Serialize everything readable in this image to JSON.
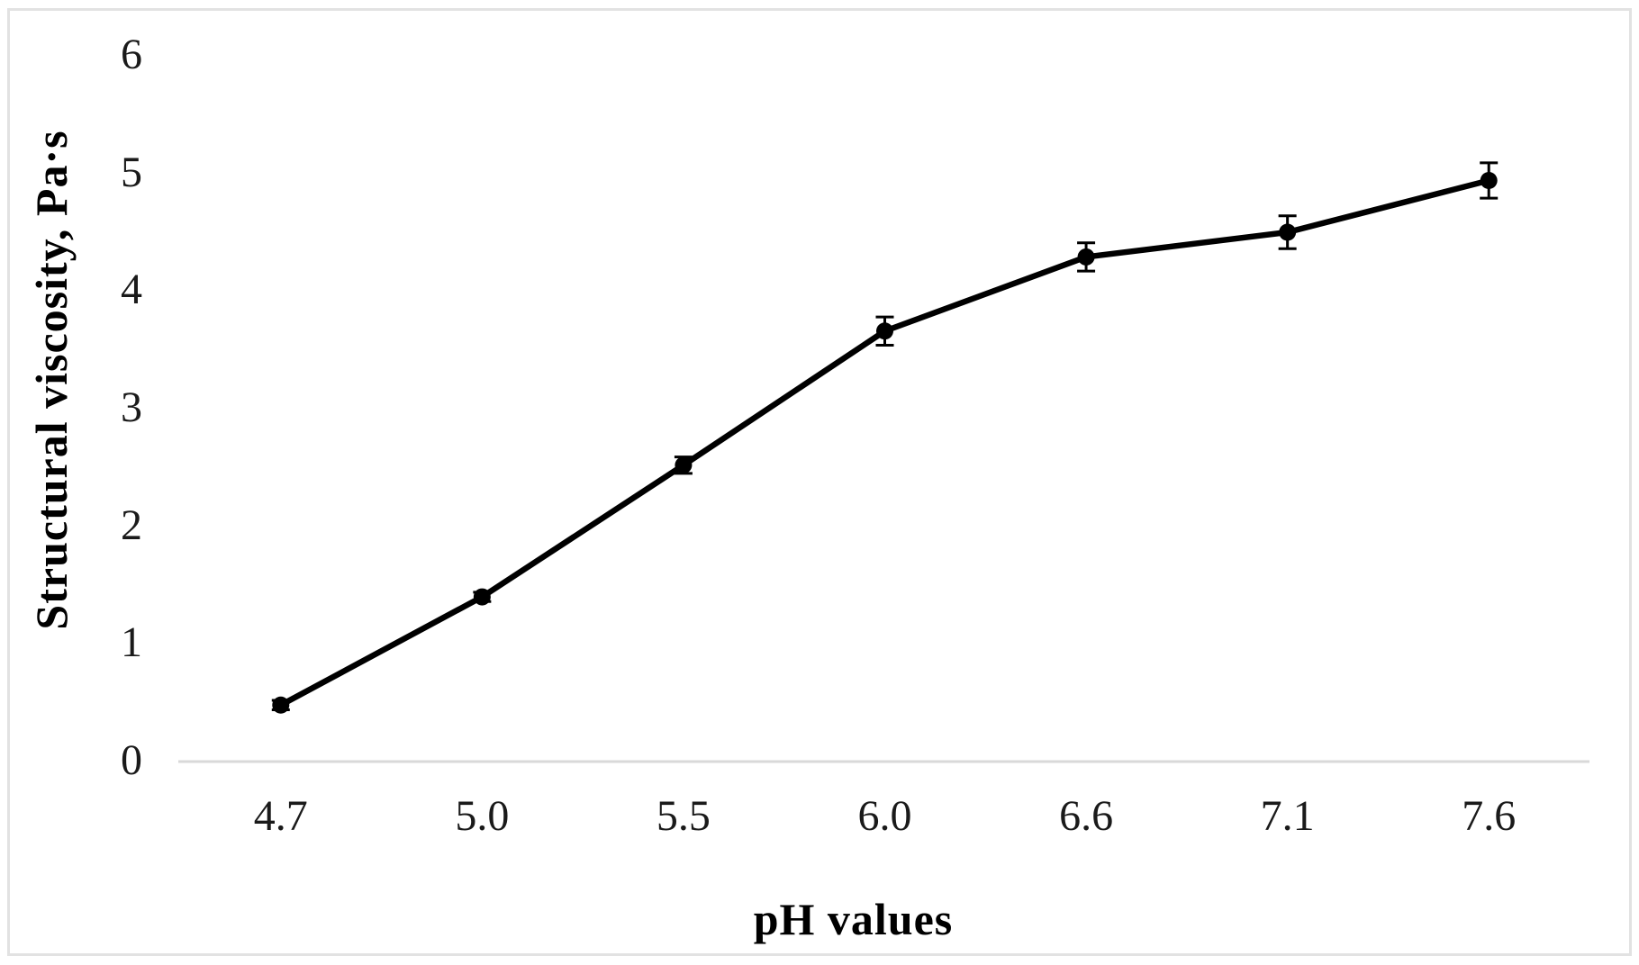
{
  "figure": {
    "background_color": "#ffffff",
    "border_color": "#e2e2e2"
  },
  "chart_data": {
    "type": "line",
    "title": "",
    "xlabel": "pH values",
    "ylabel": "Structural viscosity, Pa·s",
    "categories": [
      "4.7",
      "5.0",
      "5.5",
      "6.0",
      "6.6",
      "7.1",
      "7.6"
    ],
    "series": [
      {
        "values": [
          0.48,
          1.4,
          2.52,
          3.66,
          4.29,
          4.5,
          4.94
        ],
        "error_bars": [
          0.04,
          0.04,
          0.07,
          0.12,
          0.12,
          0.14,
          0.15
        ]
      }
    ],
    "yticks": [
      0,
      1,
      2,
      3,
      4,
      5,
      6
    ],
    "ylim": [
      0,
      6
    ],
    "grid": false,
    "legend": "none",
    "marker": "circle",
    "line_color": "#000000",
    "marker_color": "#000000",
    "error_bar_color": "#000000",
    "axis_line_color": "#d9d9d9",
    "text_color": "#1a1a1a"
  }
}
